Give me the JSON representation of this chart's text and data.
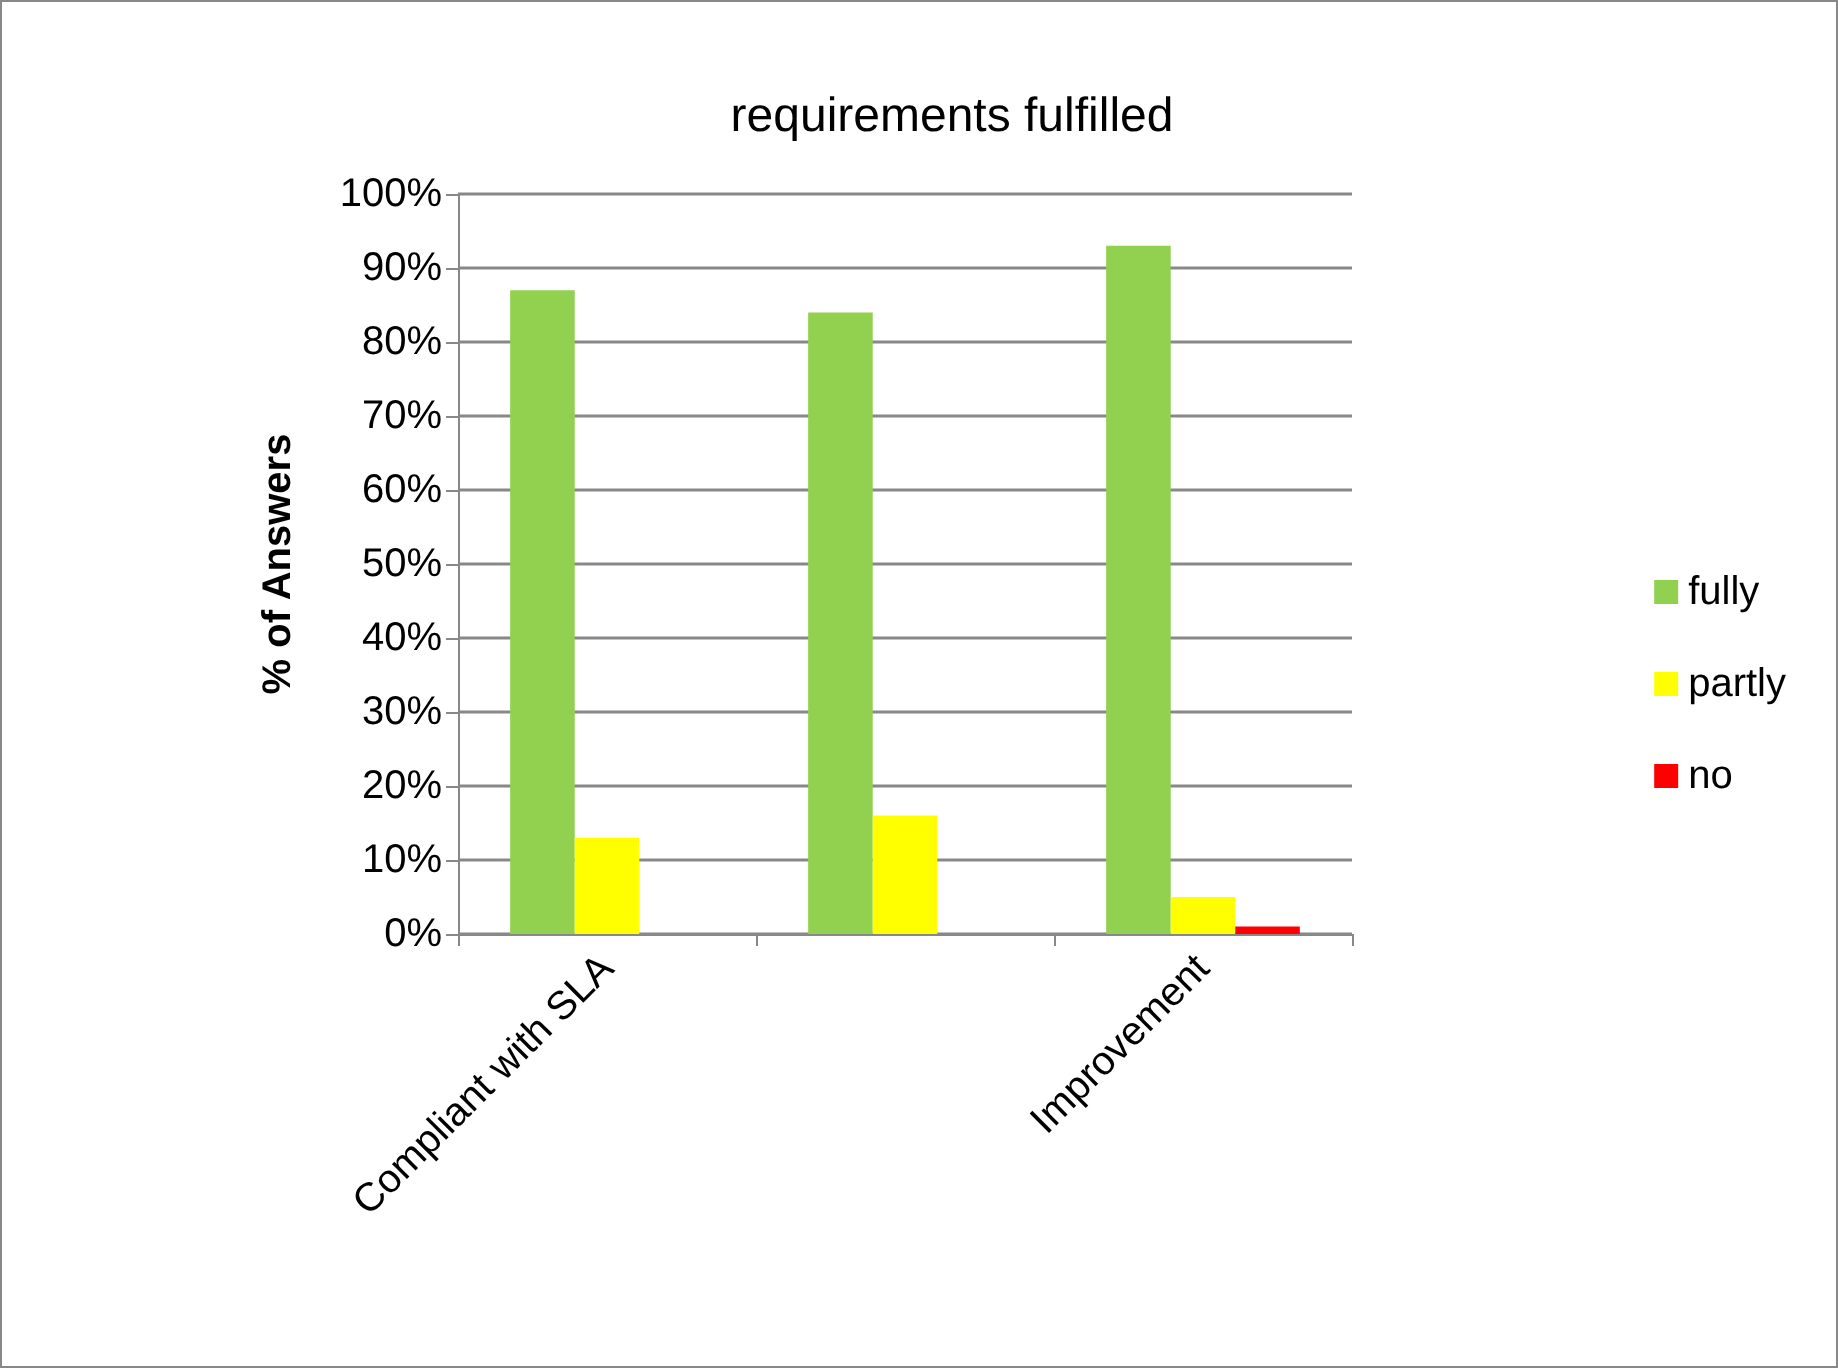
{
  "chart_data": {
    "type": "bar",
    "title": "requirements fulfilled",
    "ylabel": "% of Answers",
    "categories": [
      "Compliant with SLA",
      null,
      "Improvement"
    ],
    "series": [
      {
        "name": "fully",
        "color": "#92d050",
        "values": [
          87,
          84,
          93
        ]
      },
      {
        "name": "partly",
        "color": "#ffff00",
        "values": [
          13,
          16,
          5
        ]
      },
      {
        "name": "no",
        "color": "#ff0000",
        "values": [
          0,
          0,
          1
        ]
      }
    ],
    "ylim": [
      0,
      100
    ],
    "yticks": [
      {
        "value": 0,
        "label": "0%"
      },
      {
        "value": 10,
        "label": "10%"
      },
      {
        "value": 20,
        "label": "20%"
      },
      {
        "value": 30,
        "label": "30%"
      },
      {
        "value": 40,
        "label": "40%"
      },
      {
        "value": 50,
        "label": "50%"
      },
      {
        "value": 60,
        "label": "60%"
      },
      {
        "value": 70,
        "label": "70%"
      },
      {
        "value": 80,
        "label": "80%"
      },
      {
        "value": 90,
        "label": "90%"
      },
      {
        "value": 100,
        "label": "100%"
      }
    ],
    "grid": "y",
    "legend": "right"
  }
}
